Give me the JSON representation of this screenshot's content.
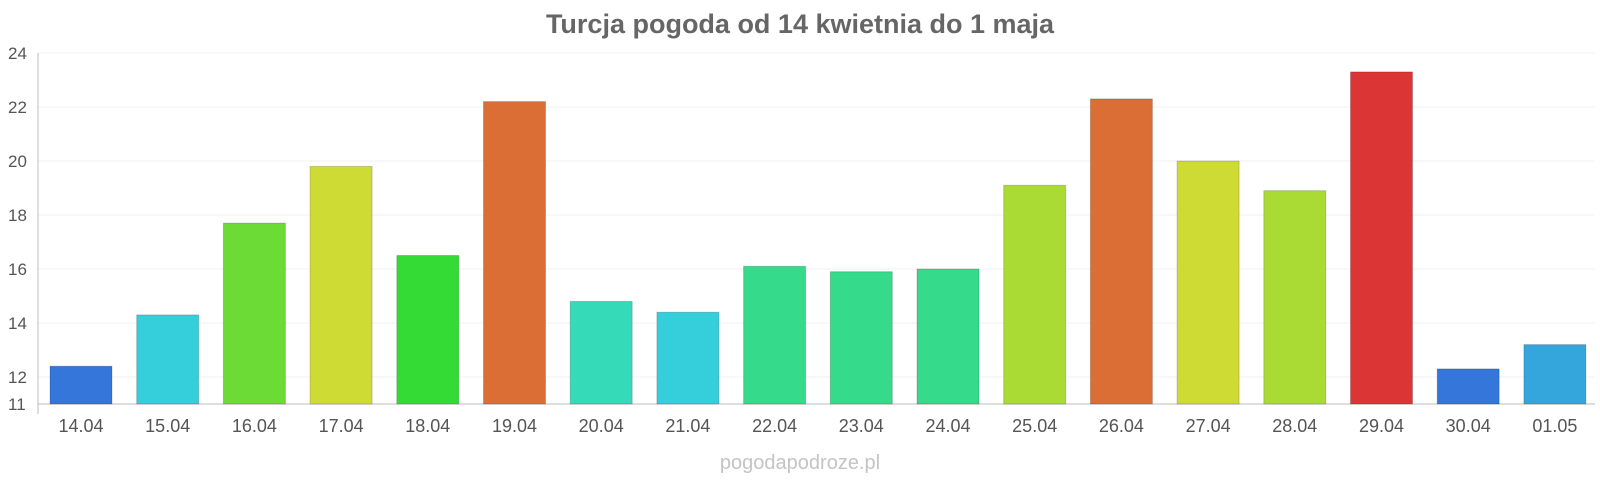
{
  "chart_data": {
    "type": "bar",
    "title": "Turcja pogoda od 14 kwietnia do 1 maja",
    "xlabel": "",
    "ylabel": "",
    "categories": [
      "14.04",
      "15.04",
      "16.04",
      "17.04",
      "18.04",
      "19.04",
      "20.04",
      "21.04",
      "22.04",
      "23.04",
      "24.04",
      "25.04",
      "26.04",
      "27.04",
      "28.04",
      "29.04",
      "30.04",
      "01.05"
    ],
    "values": [
      12.4,
      14.3,
      17.7,
      19.8,
      16.5,
      22.2,
      14.8,
      14.4,
      16.1,
      15.9,
      16.0,
      19.1,
      22.3,
      20.0,
      18.9,
      23.3,
      12.3,
      13.2
    ],
    "colors": [
      "#3576db",
      "#35cfdb",
      "#6cdb35",
      "#cfdb35",
      "#35db35",
      "#db6e35",
      "#35dbb9",
      "#35cfdb",
      "#35db8a",
      "#35db8a",
      "#35db8a",
      "#aadb35",
      "#db6e35",
      "#cfdb35",
      "#aadb35",
      "#db3535",
      "#3576db",
      "#35a6db"
    ],
    "yticks": [
      11,
      12,
      14,
      16,
      18,
      20,
      22,
      24
    ],
    "ylim": [
      11,
      24
    ],
    "grid": true,
    "legend": "none"
  },
  "watermark": "pogodapodroze.pl"
}
